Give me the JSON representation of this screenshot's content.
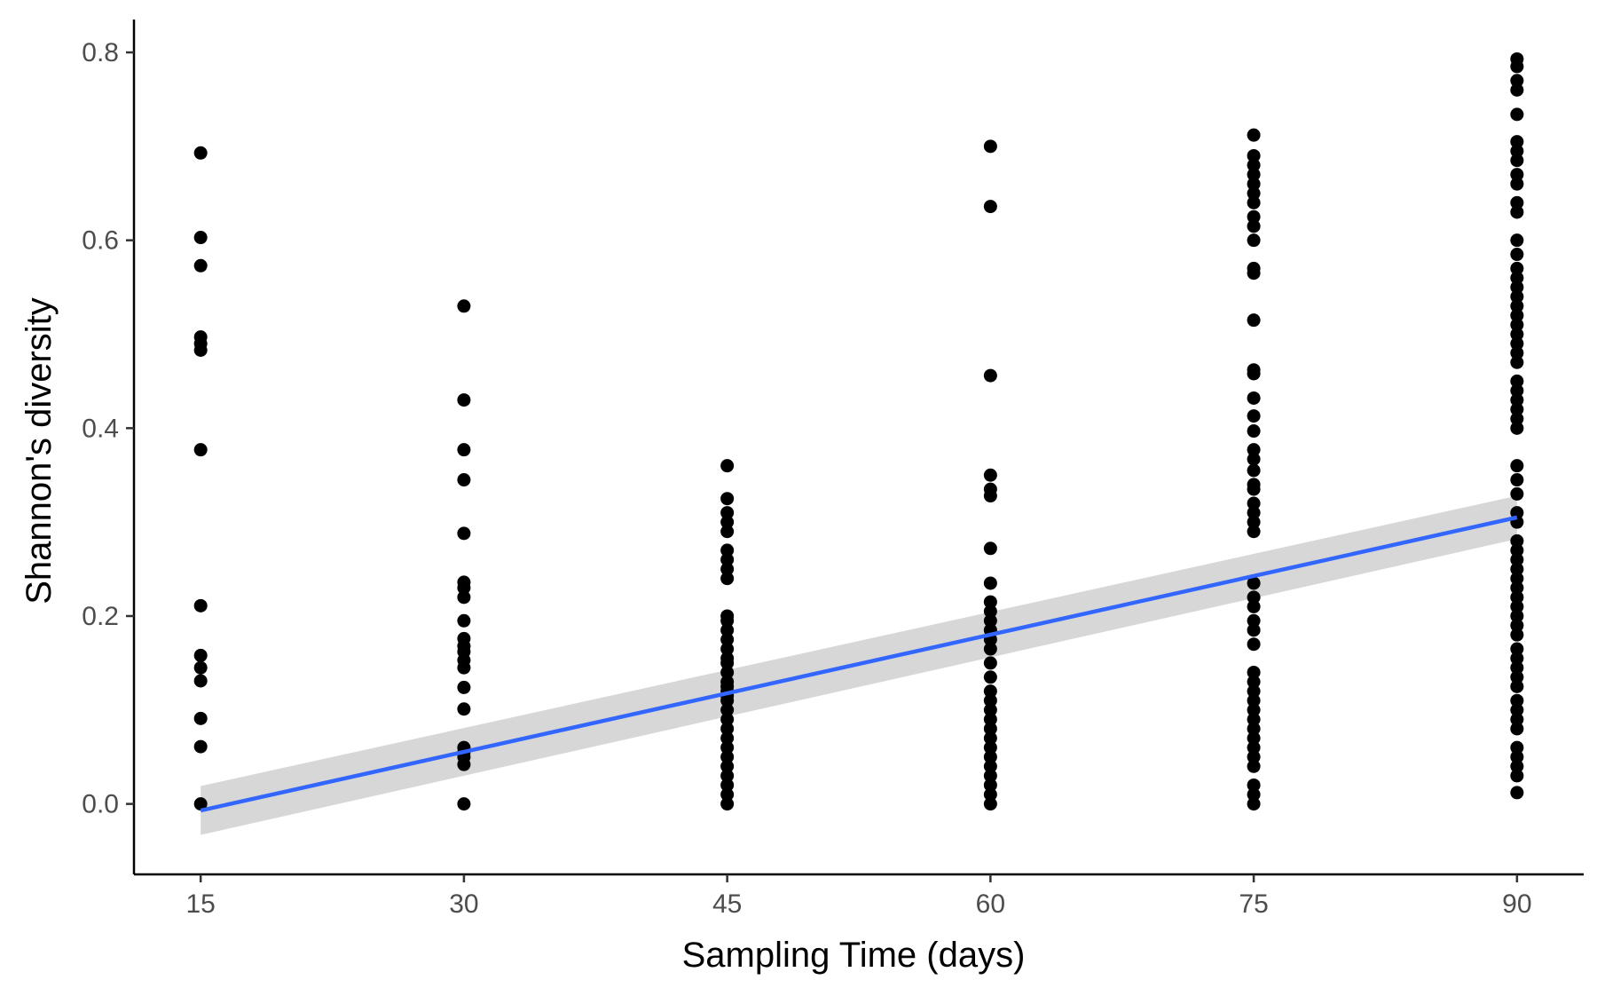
{
  "chart_data": {
    "type": "scatter",
    "title": "",
    "xlabel": "Sampling Time (days)",
    "ylabel": "Shannon's diversity",
    "x_ticks": [
      15,
      30,
      45,
      60,
      75,
      90
    ],
    "y_ticks": [
      0.0,
      0.2,
      0.4,
      0.6,
      0.8
    ],
    "x_tick_labels": [
      "15",
      "30",
      "45",
      "60",
      "75",
      "90"
    ],
    "y_tick_labels": [
      "0.0",
      "0.2",
      "0.4",
      "0.6",
      "0.8"
    ],
    "xlim": [
      11.2,
      93.8
    ],
    "ylim": [
      -0.075,
      0.835
    ],
    "grid": false,
    "legend": "none",
    "point_color": "#000000",
    "fit_line_color": "#3366ff",
    "confidence_band_color": "#bdbdbd",
    "series": [
      {
        "x": 15,
        "values": [
          0.693,
          0.603,
          0.573,
          0.497,
          0.49,
          0.483,
          0.377,
          0.211,
          0.158,
          0.145,
          0.131,
          0.091,
          0.061,
          0.0
        ]
      },
      {
        "x": 30,
        "values": [
          0.53,
          0.43,
          0.377,
          0.345,
          0.288,
          0.236,
          0.23,
          0.22,
          0.195,
          0.176,
          0.168,
          0.162,
          0.153,
          0.145,
          0.124,
          0.101,
          0.06,
          0.055,
          0.05,
          0.042,
          0.0
        ]
      },
      {
        "x": 45,
        "values": [
          0.36,
          0.325,
          0.31,
          0.3,
          0.29,
          0.27,
          0.26,
          0.25,
          0.24,
          0.2,
          0.195,
          0.185,
          0.175,
          0.165,
          0.155,
          0.15,
          0.14,
          0.13,
          0.125,
          0.12,
          0.115,
          0.11,
          0.1,
          0.09,
          0.08,
          0.07,
          0.06,
          0.05,
          0.04,
          0.03,
          0.02,
          0.01,
          0.0
        ]
      },
      {
        "x": 60,
        "values": [
          0.7,
          0.636,
          0.456,
          0.35,
          0.335,
          0.328,
          0.272,
          0.235,
          0.215,
          0.205,
          0.195,
          0.185,
          0.175,
          0.165,
          0.15,
          0.135,
          0.12,
          0.11,
          0.1,
          0.09,
          0.08,
          0.07,
          0.06,
          0.05,
          0.04,
          0.03,
          0.02,
          0.01,
          0.0
        ]
      },
      {
        "x": 75,
        "values": [
          0.712,
          0.69,
          0.68,
          0.67,
          0.66,
          0.65,
          0.64,
          0.625,
          0.615,
          0.6,
          0.57,
          0.565,
          0.515,
          0.462,
          0.458,
          0.432,
          0.413,
          0.397,
          0.377,
          0.367,
          0.355,
          0.34,
          0.335,
          0.32,
          0.31,
          0.3,
          0.29,
          0.235,
          0.22,
          0.21,
          0.195,
          0.185,
          0.17,
          0.14,
          0.13,
          0.12,
          0.11,
          0.1,
          0.09,
          0.08,
          0.07,
          0.06,
          0.05,
          0.04,
          0.02,
          0.01,
          0.0
        ]
      },
      {
        "x": 90,
        "values": [
          0.793,
          0.785,
          0.77,
          0.76,
          0.734,
          0.705,
          0.695,
          0.685,
          0.67,
          0.66,
          0.64,
          0.63,
          0.6,
          0.585,
          0.57,
          0.56,
          0.55,
          0.54,
          0.53,
          0.52,
          0.51,
          0.5,
          0.49,
          0.48,
          0.47,
          0.45,
          0.44,
          0.43,
          0.42,
          0.41,
          0.4,
          0.36,
          0.345,
          0.33,
          0.31,
          0.3,
          0.28,
          0.27,
          0.26,
          0.25,
          0.24,
          0.23,
          0.22,
          0.21,
          0.2,
          0.19,
          0.18,
          0.165,
          0.155,
          0.145,
          0.135,
          0.125,
          0.11,
          0.1,
          0.09,
          0.08,
          0.06,
          0.05,
          0.04,
          0.03,
          0.012
        ]
      }
    ],
    "fit_line": {
      "x": [
        15,
        90
      ],
      "y": [
        -0.007,
        0.305
      ],
      "band_lower": [
        -0.033,
        0.282
      ],
      "band_upper": [
        0.019,
        0.328
      ]
    }
  }
}
